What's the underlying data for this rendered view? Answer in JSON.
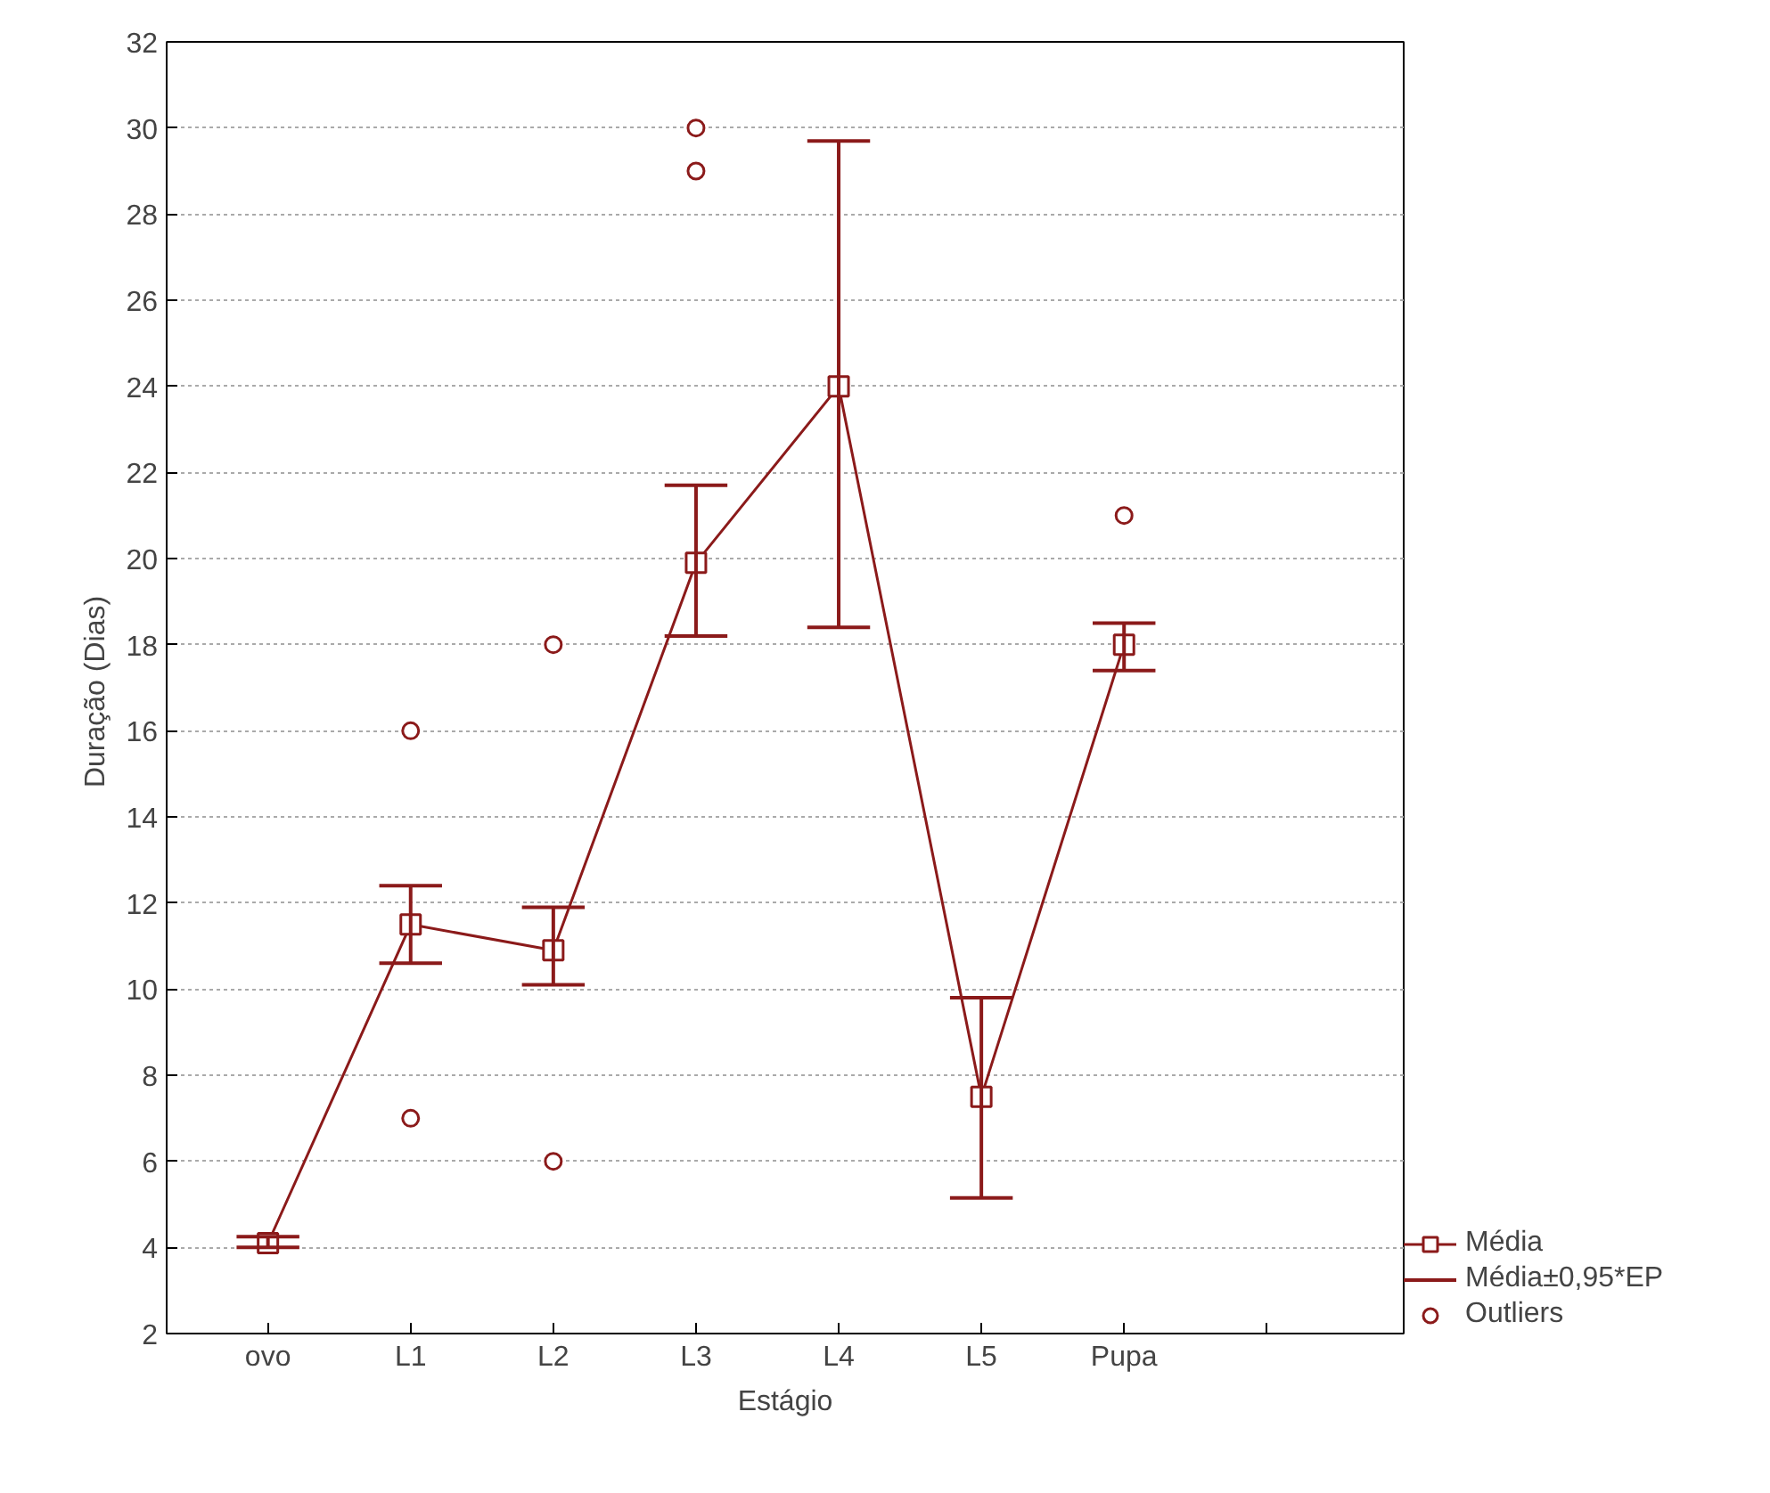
{
  "chart_data": {
    "type": "line",
    "xlabel": "Estágio",
    "ylabel": "Duração  (Dias)",
    "categories": [
      "ovo",
      "L1",
      "L2",
      "L3",
      "L4",
      "L5",
      "Pupa",
      null
    ],
    "ylim": [
      2,
      32
    ],
    "yticks": [
      2,
      4,
      6,
      8,
      10,
      12,
      14,
      16,
      18,
      20,
      22,
      24,
      26,
      28,
      30,
      32
    ],
    "grid": "y",
    "legend": "bottom right",
    "series": [
      {
        "name": "Média",
        "marker": "square",
        "color": "#8b1a1a",
        "values": [
          4.1,
          11.5,
          10.9,
          19.9,
          24.0,
          7.5,
          18.0,
          null
        ],
        "errors": [
          [
            4.0,
            4.25
          ],
          [
            10.6,
            12.4
          ],
          [
            10.1,
            11.9
          ],
          [
            18.2,
            21.7
          ],
          [
            18.4,
            29.7
          ],
          [
            5.15,
            9.8
          ],
          [
            17.4,
            18.5
          ],
          null
        ]
      },
      {
        "name": "Outliers",
        "type": "scatter",
        "marker": "circle",
        "color": "#8b1a1a",
        "x": [
          "L1",
          "L1",
          "L2",
          "L2",
          "L3",
          "L3",
          "Pupa"
        ],
        "values": [
          16,
          7,
          18,
          6,
          30,
          29,
          21
        ]
      }
    ],
    "annotations": [
      "Média±0,95*EP"
    ]
  }
}
